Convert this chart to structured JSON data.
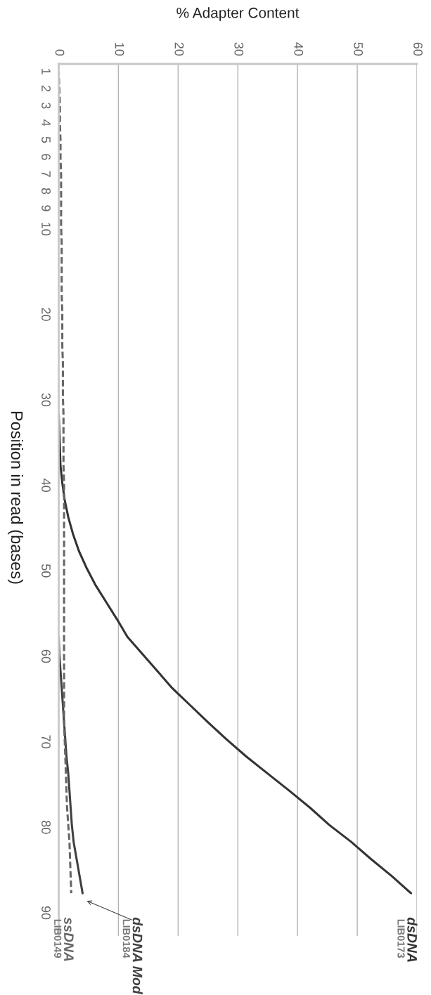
{
  "chart_data": {
    "type": "line",
    "orientation": "horizontal",
    "xlabel": "% Adapter Content",
    "ylabel": "Position in read (bases)",
    "categories": [
      "1",
      "2",
      "3",
      "4",
      "5",
      "6",
      "7",
      "8",
      "9",
      "10",
      null,
      null,
      null,
      null,
      "20",
      null,
      null,
      null,
      null,
      "30",
      null,
      null,
      null,
      null,
      "40",
      null,
      null,
      null,
      null,
      "50",
      null,
      null,
      null,
      null,
      "60",
      null,
      null,
      null,
      null,
      "70",
      null,
      null,
      null,
      null,
      "80",
      null,
      null,
      null,
      null,
      "90"
    ],
    "xlim": [
      0,
      60
    ],
    "xticks": [
      0,
      10,
      20,
      30,
      40,
      50,
      60
    ],
    "grid": "x",
    "series": [
      {
        "name": "dsDNA",
        "color": "#333333",
        "line_style": "solid",
        "values": [
          null,
          null,
          null,
          null,
          null,
          null,
          null,
          null,
          null,
          null,
          null,
          null,
          null,
          null,
          null,
          null,
          null,
          null,
          null,
          null,
          0,
          0.1,
          0.2,
          0.3,
          0.6,
          1.0,
          1.6,
          2.4,
          3.4,
          4.7,
          6.2,
          8.0,
          9.8,
          11.5,
          14.0,
          16.5,
          19.0,
          22.0,
          25.0,
          28.1,
          31.4,
          35.0,
          38.6,
          42.1,
          45.3,
          49.0,
          52.3,
          55.8,
          59.0,
          null
        ]
      },
      {
        "name": "dsDNA Mod",
        "color": "#404040",
        "line_style": "solid",
        "values": [
          null,
          null,
          null,
          null,
          null,
          null,
          null,
          null,
          null,
          null,
          null,
          null,
          null,
          null,
          null,
          null,
          null,
          null,
          null,
          null,
          null,
          null,
          null,
          null,
          null,
          null,
          null,
          null,
          null,
          null,
          null,
          null,
          null,
          0,
          0.1,
          0.3,
          0.5,
          0.7,
          0.9,
          1.1,
          1.3,
          1.6,
          1.8,
          2.0,
          2.2,
          2.5,
          3.0,
          3.5,
          4.0,
          null
        ]
      },
      {
        "name": "ssDNA",
        "color": "#666666",
        "line_style": "dashed",
        "values": [
          0.0,
          0.1,
          0.2,
          0.2,
          0.3,
          0.3,
          0.4,
          0.4,
          0.4,
          0.4,
          0.5,
          0.5,
          0.5,
          0.5,
          0.6,
          0.6,
          0.6,
          0.7,
          0.7,
          0.7,
          0.8,
          0.8,
          0.8,
          0.8,
          0.9,
          0.9,
          0.9,
          0.9,
          0.9,
          0.9,
          0.9,
          0.9,
          0.9,
          0.9,
          0.9,
          0.9,
          0.9,
          0.9,
          0.9,
          1.0,
          1.1,
          1.2,
          1.3,
          1.4,
          1.6,
          1.8,
          1.9,
          2.0,
          2.1,
          null
        ]
      }
    ],
    "annotations": [
      "LIB0173",
      "LIB0184",
      "LIB0149"
    ]
  }
}
